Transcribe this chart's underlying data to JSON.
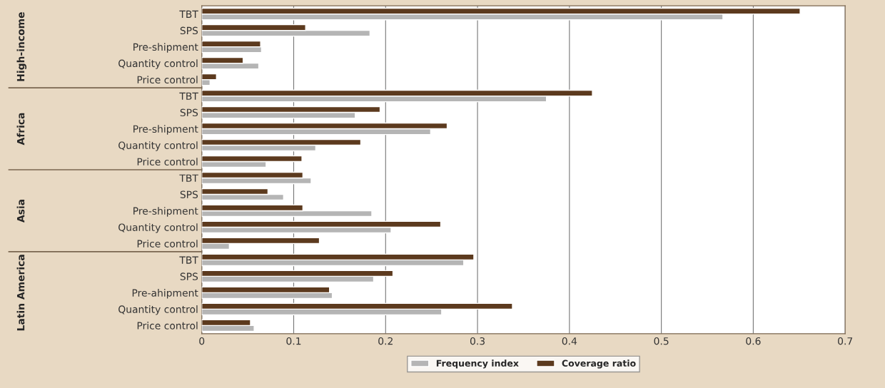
{
  "chart_data": {
    "type": "bar",
    "orientation": "horizontal",
    "categories": [
      "TBT",
      "SPS",
      "Pre-shipment",
      "Quantity control",
      "Price control",
      "TBT",
      "SPS",
      "Pre-shipment",
      "Quantity control",
      "Price control",
      "TBT",
      "SPS",
      "Pre-shipment",
      "Quantity control",
      "Price control",
      "TBT",
      "SPS",
      "Pre-ahipment",
      "Quantity control",
      "Price control"
    ],
    "series": [
      {
        "name": "Frequency index",
        "color": "#b5b5b5",
        "values": [
          0.567,
          0.183,
          0.065,
          0.062,
          0.009,
          0.375,
          0.167,
          0.249,
          0.124,
          0.07,
          0.119,
          0.089,
          0.185,
          0.206,
          0.03,
          0.285,
          0.187,
          0.142,
          0.261,
          0.057
        ]
      },
      {
        "name": "Coverage ratio",
        "color": "#5c3a1e",
        "values": [
          0.651,
          0.113,
          0.064,
          0.045,
          0.016,
          0.425,
          0.194,
          0.267,
          0.173,
          0.109,
          0.11,
          0.072,
          0.11,
          0.26,
          0.128,
          0.296,
          0.208,
          0.139,
          0.338,
          0.053
        ]
      }
    ],
    "annotations": [
      "High-income",
      "Africa",
      "Asia",
      "Latin America"
    ],
    "xlim": [
      0,
      0.7
    ],
    "xticks": [
      0,
      0.1,
      0.2,
      0.3,
      0.4,
      0.5,
      0.6,
      0.7
    ],
    "grid": "x",
    "legend": "bottom"
  }
}
